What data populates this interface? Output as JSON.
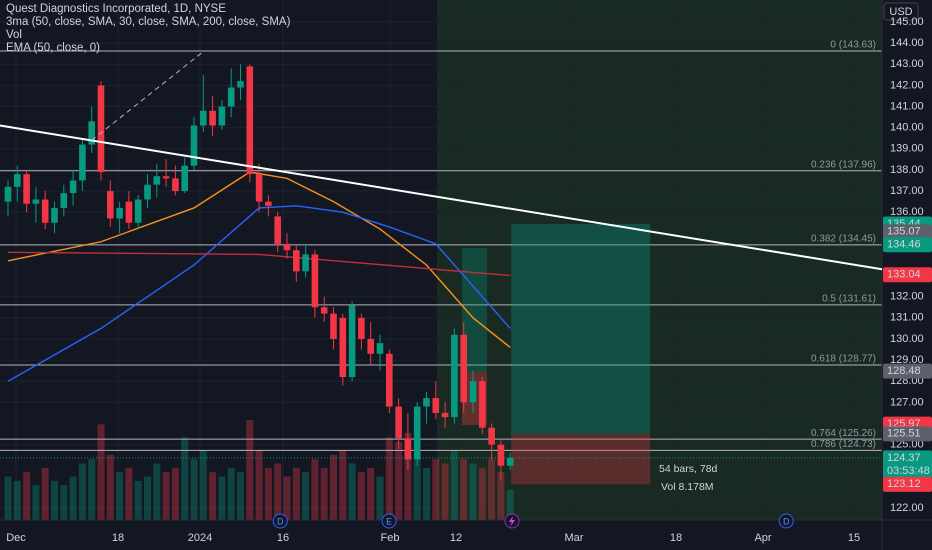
{
  "chart_data": {
    "type": "candlestick",
    "title": "Quest Diagnostics Incorporated, 1D, NYSE",
    "indicators": [
      "3ma (50, close, SMA, 30, close, SMA, 200, close, SMA)",
      "Vol",
      "EMA (50, close, 0)"
    ],
    "currency": "USD",
    "up_color": "#089981",
    "down_color": "#f23645",
    "ylim": [
      122,
      145
    ],
    "yticks": [
      {
        "value": 145,
        "label": "145.00"
      },
      {
        "value": 144,
        "label": "144.00"
      },
      {
        "value": 143,
        "label": "143.00"
      },
      {
        "value": 142,
        "label": "142.00"
      },
      {
        "value": 141,
        "label": "141.00"
      },
      {
        "value": 140,
        "label": "140.00"
      },
      {
        "value": 139,
        "label": "139.00"
      },
      {
        "value": 138,
        "label": "138.00"
      },
      {
        "value": 137,
        "label": "137.00"
      },
      {
        "value": 136,
        "label": "136.00"
      },
      {
        "value": 132,
        "label": "132.00"
      },
      {
        "value": 131,
        "label": "131.00"
      },
      {
        "value": 130,
        "label": "130.00"
      },
      {
        "value": 129,
        "label": "129.00"
      },
      {
        "value": 128,
        "label": "128.00"
      },
      {
        "value": 127,
        "label": "127.00"
      },
      {
        "value": 125,
        "label": "125.00"
      },
      {
        "value": 122,
        "label": "122.00"
      }
    ],
    "x_labels": [
      "Dec",
      "18",
      "2024",
      "16",
      "Feb",
      "12",
      "Mar",
      "18",
      "Apr",
      "15"
    ],
    "ohlc": [
      [
        136.5,
        137.5,
        135.8,
        137.2
      ],
      [
        137.2,
        138.2,
        136.5,
        137.8
      ],
      [
        137.8,
        138.0,
        136.0,
        136.4
      ],
      [
        136.4,
        137.2,
        135.5,
        136.6
      ],
      [
        136.6,
        137.0,
        135.2,
        135.5
      ],
      [
        135.5,
        136.5,
        135.0,
        136.2
      ],
      [
        136.2,
        137.3,
        135.8,
        136.9
      ],
      [
        136.9,
        138.0,
        136.3,
        137.5
      ],
      [
        137.5,
        139.5,
        137.0,
        139.2
      ],
      [
        139.2,
        141.0,
        138.8,
        140.3
      ],
      [
        142.0,
        142.2,
        137.5,
        137.9
      ],
      [
        137.0,
        137.5,
        135.3,
        135.7
      ],
      [
        135.7,
        136.5,
        135.0,
        136.2
      ],
      [
        136.5,
        137.0,
        135.2,
        135.5
      ],
      [
        135.5,
        136.8,
        135.2,
        136.6
      ],
      [
        136.6,
        137.8,
        136.2,
        137.3
      ],
      [
        137.3,
        138.3,
        136.7,
        137.7
      ],
      [
        137.7,
        138.5,
        137.2,
        137.6
      ],
      [
        137.6,
        138.2,
        136.8,
        137.0
      ],
      [
        137.0,
        138.6,
        136.9,
        138.2
      ],
      [
        138.2,
        140.5,
        138.0,
        140.1
      ],
      [
        140.1,
        142.5,
        139.8,
        140.8
      ],
      [
        140.8,
        141.5,
        139.6,
        140.1
      ],
      [
        140.1,
        141.3,
        139.9,
        141.0
      ],
      [
        141.0,
        142.8,
        140.5,
        141.9
      ],
      [
        141.9,
        143.0,
        141.3,
        142.2
      ],
      [
        142.9,
        143.0,
        137.4,
        137.8
      ],
      [
        137.8,
        138.3,
        136.0,
        136.5
      ],
      [
        136.5,
        136.8,
        135.8,
        136.3
      ],
      [
        135.8,
        136.0,
        134.1,
        134.5
      ],
      [
        134.5,
        135.0,
        133.8,
        134.2
      ],
      [
        134.2,
        134.5,
        132.7,
        133.2
      ],
      [
        133.2,
        134.5,
        132.9,
        134.0
      ],
      [
        134.0,
        134.2,
        131.0,
        131.5
      ],
      [
        131.5,
        132.0,
        130.8,
        131.2
      ],
      [
        131.2,
        131.5,
        129.5,
        130.0
      ],
      [
        131.0,
        131.2,
        127.8,
        128.2
      ],
      [
        128.2,
        131.8,
        128.0,
        131.6
      ],
      [
        131.0,
        131.2,
        129.5,
        130.0
      ],
      [
        130.0,
        130.8,
        128.8,
        129.3
      ],
      [
        129.3,
        130.2,
        128.5,
        129.8
      ],
      [
        129.3,
        129.5,
        126.5,
        126.8
      ],
      [
        126.8,
        127.2,
        124.8,
        125.3
      ],
      [
        125.3,
        126.5,
        123.8,
        124.3
      ],
      [
        124.3,
        127.0,
        124.0,
        126.8
      ],
      [
        126.8,
        127.5,
        126.0,
        127.2
      ],
      [
        127.2,
        128.0,
        126.2,
        126.5
      ],
      [
        126.5,
        127.0,
        125.8,
        126.3
      ],
      [
        126.3,
        130.5,
        126.0,
        130.2
      ],
      [
        130.2,
        130.8,
        126.5,
        127.0
      ],
      [
        127.0,
        128.5,
        126.5,
        128.0
      ],
      [
        128.0,
        128.2,
        125.5,
        125.8
      ],
      [
        125.8,
        126.0,
        124.3,
        125.0
      ],
      [
        125.0,
        125.2,
        123.3,
        124.0
      ],
      [
        124.0,
        124.6,
        123.8,
        124.37
      ]
    ],
    "volume": [
      1.0,
      0.9,
      1.1,
      0.8,
      1.2,
      0.9,
      0.8,
      1.0,
      1.3,
      1.4,
      2.2,
      1.5,
      1.1,
      1.2,
      0.9,
      1.0,
      1.3,
      1.1,
      1.2,
      1.9,
      1.4,
      1.6,
      1.1,
      1.0,
      1.2,
      1.1,
      2.3,
      1.6,
      1.2,
      1.3,
      1.0,
      1.2,
      1.1,
      1.4,
      1.2,
      1.5,
      1.6,
      1.3,
      1.1,
      1.2,
      1.0,
      1.9,
      1.8,
      2.0,
      1.5,
      1.2,
      1.4,
      1.3,
      1.6,
      1.4,
      1.3,
      1.2,
      1.4,
      1.1,
      0.7
    ],
    "series": [
      {
        "color": "#f7931a",
        "x": [
          0,
          10,
          20,
          26,
          30,
          35,
          40,
          45,
          50,
          54
        ],
        "values": [
          133.7,
          134.6,
          136.2,
          137.9,
          137.6,
          136.5,
          135.2,
          133.5,
          131.0,
          129.6
        ]
      },
      {
        "color": "#2962ff",
        "x": [
          0,
          10,
          20,
          27,
          31,
          36,
          41,
          46,
          51,
          54
        ],
        "values": [
          128.0,
          130.5,
          133.5,
          136.2,
          136.3,
          136.0,
          135.3,
          134.5,
          132.0,
          130.5
        ]
      },
      {
        "color": "#c2303a",
        "x": [
          0,
          27,
          54
        ],
        "values": [
          134.1,
          134.0,
          133.0
        ]
      }
    ],
    "trend_line": [
      140.1,
      133.3
    ],
    "dashed_line": {
      "x": [
        9,
        21
      ],
      "values": [
        139.4,
        143.6
      ]
    },
    "fib_levels": [
      {
        "price": 143.63,
        "label": "0 (143.63)"
      },
      {
        "price": 137.96,
        "label": "0.236 (137.96)"
      },
      {
        "price": 134.45,
        "label": "0.382 (134.45)"
      },
      {
        "price": 131.61,
        "label": "0.5 (131.61)"
      },
      {
        "price": 128.77,
        "label": "0.618 (128.77)"
      },
      {
        "price": 125.26,
        "label": "0.764 (125.26)"
      },
      {
        "price": 124.73,
        "label": "0.786 (124.73)"
      }
    ],
    "position": {
      "target": 135.44,
      "entry": 125.51,
      "stop": 123.12,
      "bars_label": "54 bars, 78d",
      "vol_label": "Vol 8.178M"
    },
    "price_tags": [
      {
        "value": 135.07,
        "color": "#5d606b"
      },
      {
        "value": 134.46,
        "color": "#089981"
      },
      {
        "value": 133.04,
        "color": "#f23645"
      },
      {
        "value": 128.48,
        "color": "#5d606b"
      },
      {
        "value": 125.97,
        "color": "#f23645"
      }
    ],
    "last_price": {
      "value": 124.37,
      "countdown": "03:53:48"
    },
    "events": [
      {
        "label": "D",
        "bar": 29.6
      },
      {
        "label": "E",
        "bar": 41.3
      },
      {
        "label": "D",
        "bar": 84
      }
    ]
  }
}
